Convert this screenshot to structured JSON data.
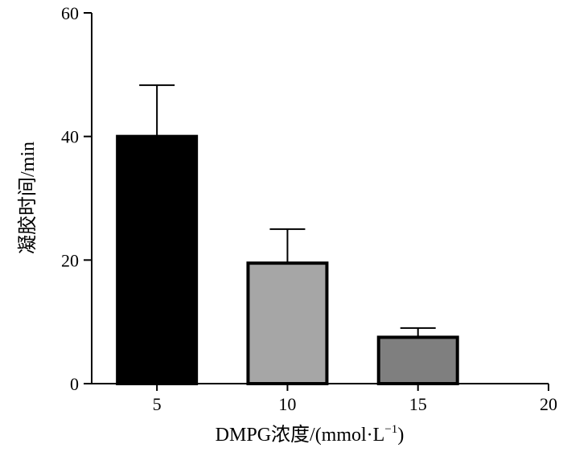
{
  "chart_data": {
    "type": "bar",
    "title": "",
    "xlabel": "DMPG浓度/(mmol·L",
    "xlabel_superscript": "−1",
    "xlabel_suffix": ")",
    "ylabel": "凝胶时间/min",
    "x_ticks": [
      "5",
      "10",
      "15",
      "20"
    ],
    "y_ticks": [
      "0",
      "20",
      "40",
      "60"
    ],
    "xlim": [
      2.5,
      20
    ],
    "ylim": [
      0,
      60
    ],
    "grid": false,
    "legend": "none",
    "bars": [
      {
        "x": 5,
        "category": "5",
        "value": 40,
        "error": 8.3,
        "color": "#000000"
      },
      {
        "x": 10,
        "category": "10",
        "value": 19.5,
        "error": 5.5,
        "color": "#a6a6a6"
      },
      {
        "x": 15,
        "category": "15",
        "value": 7.5,
        "error": 1.5,
        "color": "#7f7f7f"
      }
    ]
  }
}
